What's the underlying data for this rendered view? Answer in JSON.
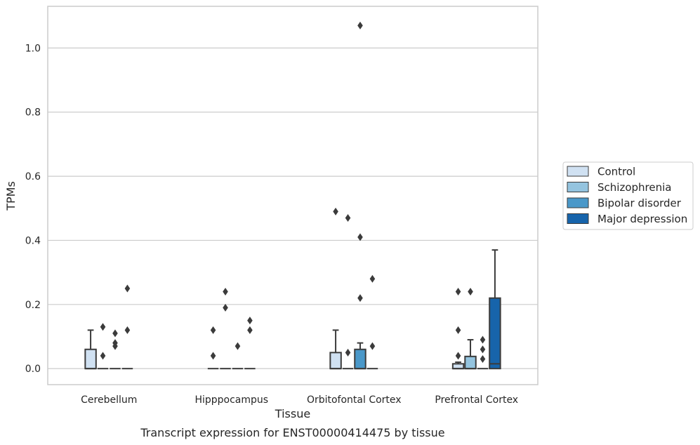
{
  "caption": "Transcript expression for ENST00000414475 by tissue",
  "chart_data": {
    "type": "box",
    "xlabel": "Tissue",
    "ylabel": "TPMs",
    "ylim": [
      -0.05,
      1.13
    ],
    "yticks": [
      "0.0",
      "0.2",
      "0.4",
      "0.6",
      "0.8",
      "1.0"
    ],
    "grid": "horizontal",
    "legend_position": "right",
    "categories": [
      "Cerebellum",
      "Hipppocampus",
      "Orbitofontal Cortex",
      "Prefrontal Cortex"
    ],
    "series": [
      {
        "name": "Control",
        "color": "#d0e1f2"
      },
      {
        "name": "Schizophrenia",
        "color": "#94c4df"
      },
      {
        "name": "Bipolar disorder",
        "color": "#4a98c9"
      },
      {
        "name": "Major depression",
        "color": "#1764ab"
      }
    ],
    "boxes": [
      [
        {
          "q1": 0,
          "median": 0,
          "q3": 0.06,
          "whisker_low": 0,
          "whisker_high": 0.12,
          "outliers": []
        },
        {
          "q1": 0,
          "median": 0,
          "q3": 0,
          "whisker_low": 0,
          "whisker_high": 0,
          "outliers": [
            0.13,
            0.04
          ]
        },
        {
          "q1": 0,
          "median": 0,
          "q3": 0,
          "whisker_low": 0,
          "whisker_high": 0,
          "outliers": [
            0.11,
            0.08,
            0.07
          ]
        },
        {
          "q1": 0,
          "median": 0,
          "q3": 0,
          "whisker_low": 0,
          "whisker_high": 0,
          "outliers": [
            0.25,
            0.12
          ]
        }
      ],
      [
        {
          "q1": 0,
          "median": 0,
          "q3": 0,
          "whisker_low": 0,
          "whisker_high": 0,
          "outliers": [
            0.12,
            0.04
          ]
        },
        {
          "q1": 0,
          "median": 0,
          "q3": 0,
          "whisker_low": 0,
          "whisker_high": 0,
          "outliers": [
            0.24,
            0.19
          ]
        },
        {
          "q1": 0,
          "median": 0,
          "q3": 0,
          "whisker_low": 0,
          "whisker_high": 0,
          "outliers": [
            0.07
          ]
        },
        {
          "q1": 0,
          "median": 0,
          "q3": 0,
          "whisker_low": 0,
          "whisker_high": 0,
          "outliers": [
            0.15,
            0.12
          ]
        }
      ],
      [
        {
          "q1": 0,
          "median": 0,
          "q3": 0.05,
          "whisker_low": 0,
          "whisker_high": 0.12,
          "outliers": [
            0.49
          ]
        },
        {
          "q1": 0,
          "median": 0,
          "q3": 0,
          "whisker_low": 0,
          "whisker_high": 0,
          "outliers": [
            0.47,
            0.05
          ]
        },
        {
          "q1": 0,
          "median": 0,
          "q3": 0.06,
          "whisker_low": 0,
          "whisker_high": 0.08,
          "outliers": [
            1.07,
            0.41,
            0.22
          ]
        },
        {
          "q1": 0,
          "median": 0,
          "q3": 0,
          "whisker_low": 0,
          "whisker_high": 0,
          "outliers": [
            0.28,
            0.07
          ]
        }
      ],
      [
        {
          "q1": 0,
          "median": 0,
          "q3": 0.015,
          "whisker_low": 0,
          "whisker_high": 0.02,
          "outliers": [
            0.24,
            0.12,
            0.04
          ]
        },
        {
          "q1": 0,
          "median": 0,
          "q3": 0.038,
          "whisker_low": 0,
          "whisker_high": 0.09,
          "outliers": [
            0.24
          ]
        },
        {
          "q1": 0,
          "median": 0,
          "q3": 0,
          "whisker_low": 0,
          "whisker_high": 0,
          "outliers": [
            0.09,
            0.06,
            0.03
          ]
        },
        {
          "q1": 0,
          "median": 0.015,
          "q3": 0.22,
          "whisker_low": 0,
          "whisker_high": 0.37,
          "outliers": []
        }
      ]
    ]
  }
}
